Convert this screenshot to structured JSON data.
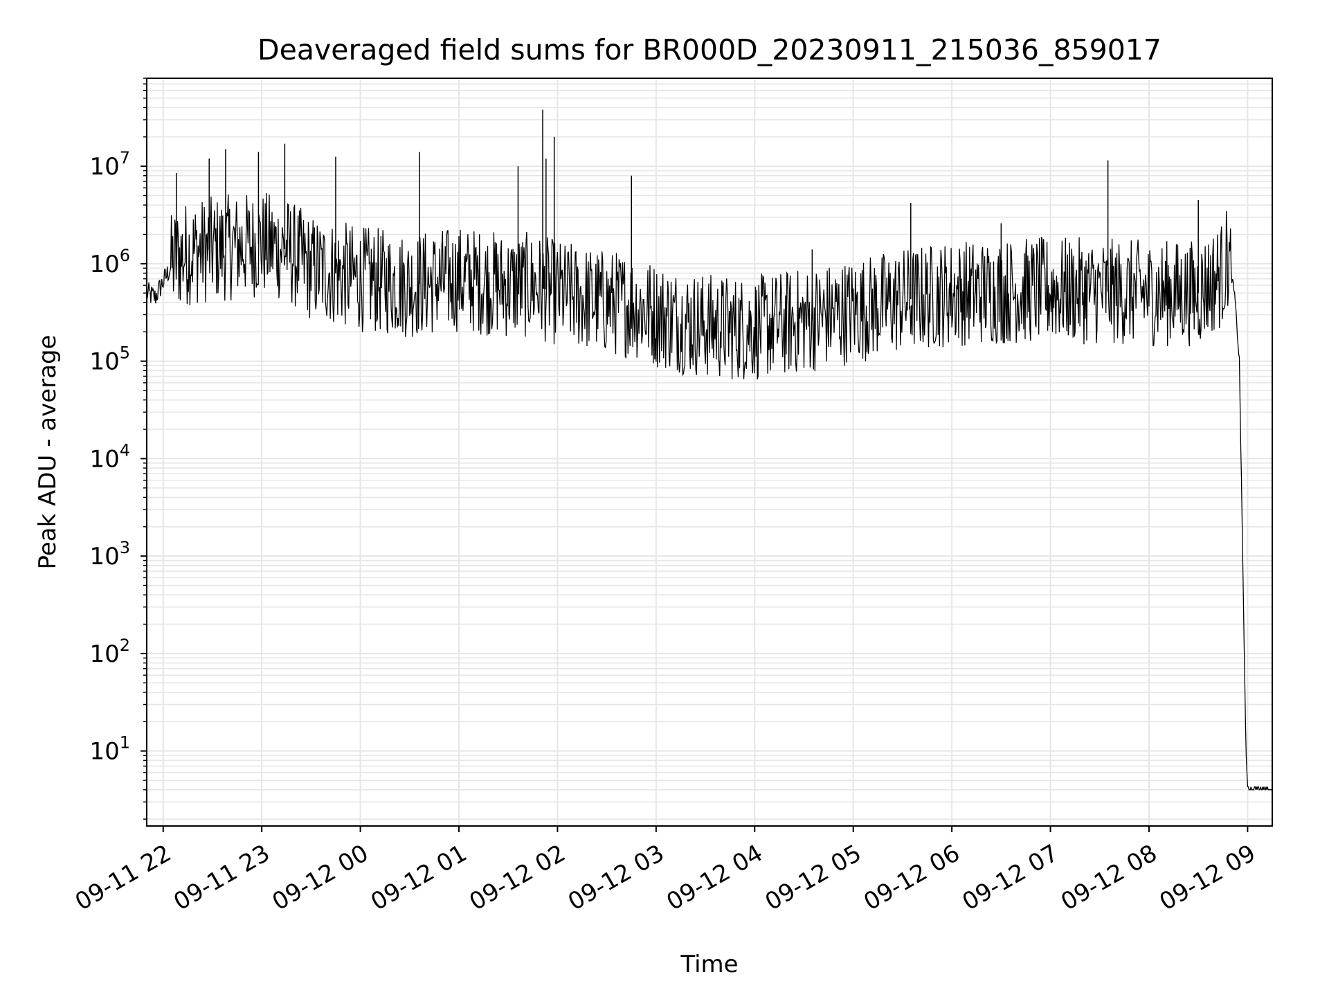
{
  "chart_data": {
    "type": "line",
    "title": "Deaveraged field sums for BR000D_20230911_215036_859017",
    "xlabel": "Time",
    "ylabel": "Peak ADU - average",
    "yscale": "log",
    "grid": true,
    "xlim": [
      "2023-09-11 21:50",
      "2023-09-12 09:15"
    ],
    "ylim": [
      1.7,
      80000000
    ],
    "xticks": [
      "09-11 22",
      "09-11 23",
      "09-12 00",
      "09-12 01",
      "09-12 02",
      "09-12 03",
      "09-12 04",
      "09-12 05",
      "09-12 06",
      "09-12 07",
      "09-12 08",
      "09-12 09"
    ],
    "yticks": [
      {
        "base": "10",
        "exp": "1",
        "value": 10
      },
      {
        "base": "10",
        "exp": "2",
        "value": 100
      },
      {
        "base": "10",
        "exp": "3",
        "value": 1000
      },
      {
        "base": "10",
        "exp": "4",
        "value": 10000
      },
      {
        "base": "10",
        "exp": "5",
        "value": 100000
      },
      {
        "base": "10",
        "exp": "6",
        "value": 1000000
      },
      {
        "base": "10",
        "exp": "7",
        "value": 10000000
      }
    ],
    "line_color": "#000000",
    "grid_color": "#e6e6e6",
    "series": [
      {
        "name": "",
        "points": [
          [
            "2023-09-11 21:50",
            500000
          ],
          [
            "2023-09-11 21:55",
            450000
          ],
          [
            "2023-09-11 22:00",
            650000
          ],
          [
            "2023-09-11 22:07",
            1100000
          ],
          [
            "2023-09-11 22:15",
            1300000
          ],
          [
            "2023-09-11 22:30",
            1400000
          ],
          [
            "2023-09-11 22:45",
            1500000
          ],
          [
            "2023-09-11 23:00",
            1600000
          ],
          [
            "2023-09-11 23:15",
            1400000
          ],
          [
            "2023-09-11 23:30",
            900000
          ],
          [
            "2023-09-11 23:45",
            800000
          ],
          [
            "2023-09-12 00:00",
            700000
          ],
          [
            "2023-09-12 00:15",
            650000
          ],
          [
            "2023-09-12 00:30",
            600000
          ],
          [
            "2023-09-12 00:45",
            650000
          ],
          [
            "2023-09-12 01:00",
            700000
          ],
          [
            "2023-09-12 01:15",
            650000
          ],
          [
            "2023-09-12 01:30",
            600000
          ],
          [
            "2023-09-12 01:45",
            600000
          ],
          [
            "2023-09-12 02:00",
            500000
          ],
          [
            "2023-09-12 02:15",
            450000
          ],
          [
            "2023-09-12 02:30",
            400000
          ],
          [
            "2023-09-12 02:45",
            380000
          ],
          [
            "2023-09-12 03:00",
            300000
          ],
          [
            "2023-09-12 03:15",
            260000
          ],
          [
            "2023-09-12 03:30",
            230000
          ],
          [
            "2023-09-12 03:45",
            220000
          ],
          [
            "2023-09-12 04:00",
            220000
          ],
          [
            "2023-09-12 04:30",
            260000
          ],
          [
            "2023-09-12 05:00",
            330000
          ],
          [
            "2023-09-12 05:30",
            420000
          ],
          [
            "2023-09-12 06:00",
            500000
          ],
          [
            "2023-09-12 06:30",
            520000
          ],
          [
            "2023-09-12 07:00",
            540000
          ],
          [
            "2023-09-12 07:30",
            520000
          ],
          [
            "2023-09-12 08:00",
            500000
          ],
          [
            "2023-09-12 08:30",
            500000
          ],
          [
            "2023-09-12 08:45",
            800000
          ],
          [
            "2023-09-12 08:48",
            1200000
          ],
          [
            "2023-09-12 08:52",
            500000
          ],
          [
            "2023-09-12 08:55",
            100000
          ],
          [
            "2023-09-12 08:57",
            1000
          ],
          [
            "2023-09-12 08:59",
            10
          ],
          [
            "2023-09-12 09:00",
            4
          ],
          [
            "2023-09-12 09:15",
            4
          ]
        ],
        "spikes": [
          [
            "2023-09-11 22:08",
            8500000
          ],
          [
            "2023-09-11 22:28",
            12000000
          ],
          [
            "2023-09-11 22:38",
            15000000
          ],
          [
            "2023-09-11 22:58",
            14000000
          ],
          [
            "2023-09-11 23:14",
            17000000
          ],
          [
            "2023-09-11 23:45",
            12500000
          ],
          [
            "2023-09-12 00:36",
            14000000
          ],
          [
            "2023-09-12 01:36",
            10000000
          ],
          [
            "2023-09-12 01:51",
            38000000
          ],
          [
            "2023-09-12 01:53",
            12000000
          ],
          [
            "2023-09-12 01:58",
            20000000
          ],
          [
            "2023-09-12 02:45",
            8000000
          ],
          [
            "2023-09-12 04:35",
            1400000
          ],
          [
            "2023-09-12 05:35",
            4200000
          ],
          [
            "2023-09-12 06:30",
            2600000
          ],
          [
            "2023-09-12 07:35",
            11500000
          ],
          [
            "2023-09-12 08:30",
            4500000
          ]
        ]
      }
    ]
  }
}
